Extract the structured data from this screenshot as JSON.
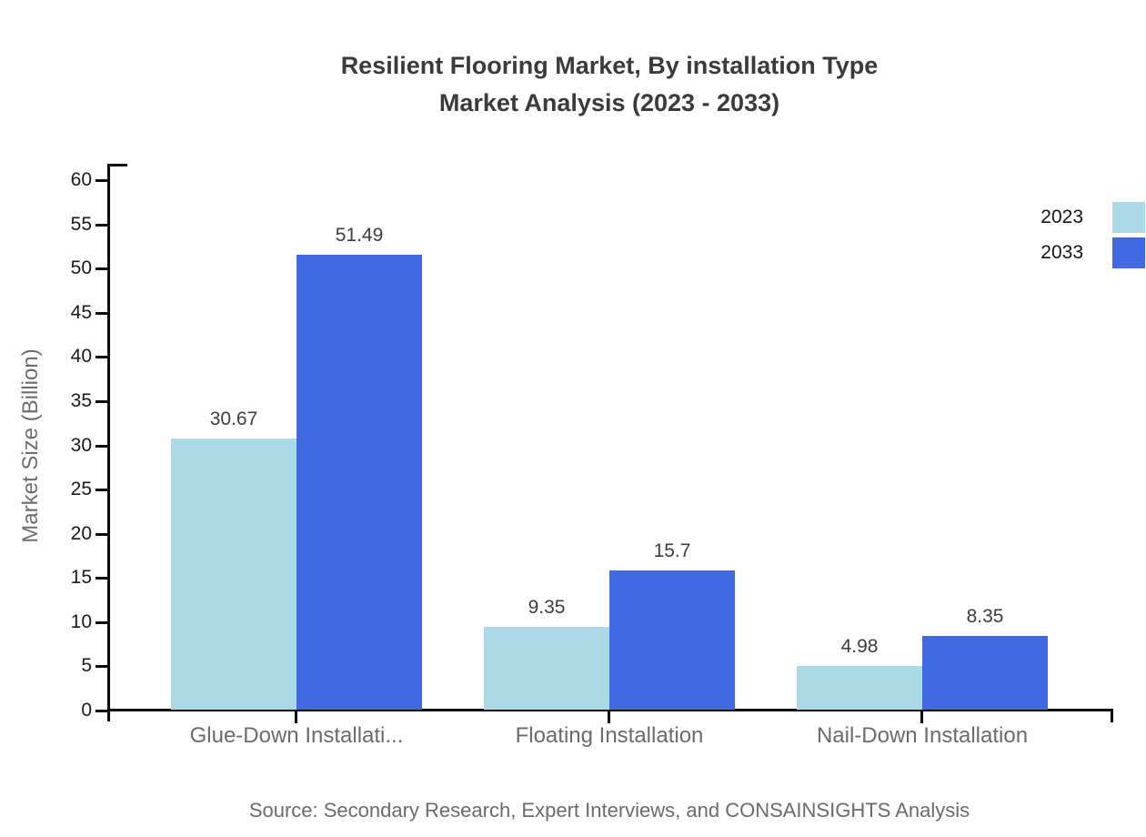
{
  "title": {
    "line1": "Resilient Flooring Market, By installation Type",
    "line2": "Market Analysis (2023 - 2033)"
  },
  "source": "Source: Secondary Research, Expert Interviews, and CONSAINSIGHTS Analysis",
  "chart_data": {
    "type": "bar",
    "title": "Resilient Flooring Market, By installation Type Market Analysis (2023 - 2033)",
    "categories": [
      "Glue-Down Installati...",
      "Floating Installation",
      "Nail-Down Installation"
    ],
    "series": [
      {
        "name": "2023",
        "color": "#ADD8E6",
        "values": [
          30.67,
          9.35,
          4.98
        ]
      },
      {
        "name": "2033",
        "color": "#4169E1",
        "values": [
          51.49,
          15.7,
          8.35
        ]
      }
    ],
    "xlabel": "",
    "ylabel": "Market Size (Billion)",
    "ylim": [
      0,
      60
    ],
    "ytick_step": 5,
    "grid": false,
    "legend_position": "top-right",
    "value_labels": true
  }
}
